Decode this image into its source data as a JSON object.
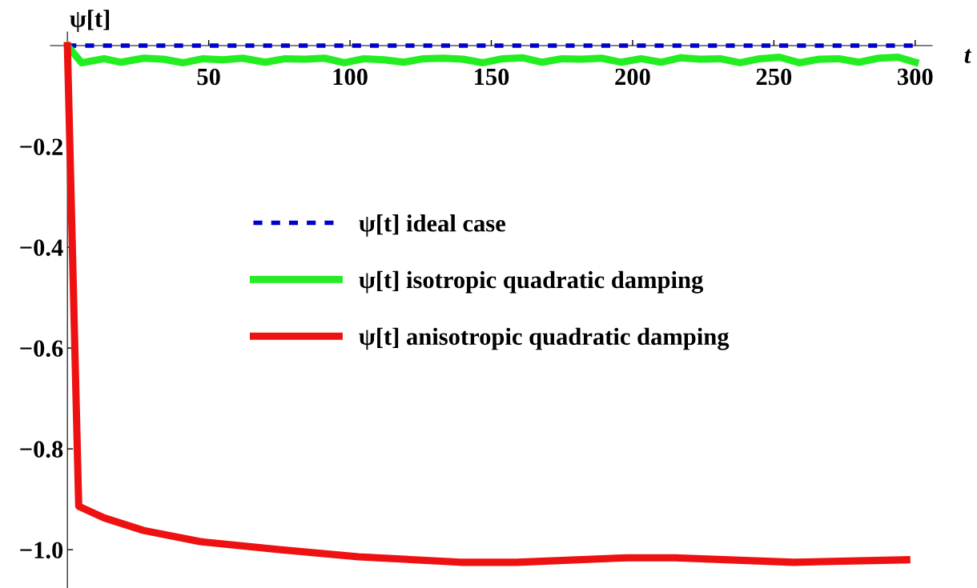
{
  "chart_data": {
    "type": "line",
    "xlabel": "t",
    "ylabel": "ψ[t]",
    "xlim": [
      -6,
      306
    ],
    "ylim": [
      -1.076,
      0.027
    ],
    "xticks": [
      50,
      100,
      150,
      200,
      250,
      300
    ],
    "yticks": [
      {
        "value": -0.2,
        "label": "−0.2"
      },
      {
        "value": -0.4,
        "label": "−0.4"
      },
      {
        "value": -0.6,
        "label": "−0.6"
      },
      {
        "value": -0.8,
        "label": "−0.8"
      },
      {
        "value": -1.0,
        "label": "−1.0"
      }
    ],
    "grid": false,
    "legend": "center",
    "marker": "none",
    "series": [
      {
        "name": "ψ[t] ideal case",
        "color": "#0000cc",
        "line_style": "dashed",
        "x": [
          0,
          300
        ],
        "values": [
          0,
          0
        ]
      },
      {
        "name": "ψ[t] isotropic quadratic damping",
        "color": "#22ee22",
        "line_style": "solid",
        "x": [
          0,
          5,
          13,
          19,
          27,
          34,
          41,
          48,
          55,
          62,
          70,
          77,
          84,
          91,
          98,
          105,
          112,
          119,
          126,
          133,
          140,
          147,
          154,
          161,
          168,
          175,
          182,
          189,
          196,
          203,
          210,
          217,
          224,
          231,
          238,
          245,
          252,
          259,
          266,
          273,
          280,
          287,
          294,
          300
        ],
        "values": [
          0,
          -0.034,
          -0.026,
          -0.033,
          -0.025,
          -0.027,
          -0.034,
          -0.026,
          -0.028,
          -0.025,
          -0.033,
          -0.026,
          -0.027,
          -0.025,
          -0.034,
          -0.026,
          -0.028,
          -0.033,
          -0.026,
          -0.025,
          -0.027,
          -0.034,
          -0.026,
          -0.024,
          -0.033,
          -0.026,
          -0.027,
          -0.025,
          -0.033,
          -0.026,
          -0.033,
          -0.024,
          -0.027,
          -0.026,
          -0.034,
          -0.026,
          -0.023,
          -0.034,
          -0.027,
          -0.026,
          -0.033,
          -0.025,
          -0.023,
          -0.033
        ]
      },
      {
        "name": "ψ[t] anisotropic quadratic damping",
        "color": "#ee1111",
        "line_style": "solid",
        "x": [
          0,
          4,
          13,
          27,
          47,
          75,
          103,
          139,
          159,
          198,
          215,
          257,
          297
        ],
        "values": [
          0,
          -0.914,
          -0.937,
          -0.962,
          -0.984,
          -1.0,
          -1.014,
          -1.025,
          -1.025,
          -1.016,
          -1.016,
          -1.025,
          -1.02
        ]
      }
    ]
  }
}
